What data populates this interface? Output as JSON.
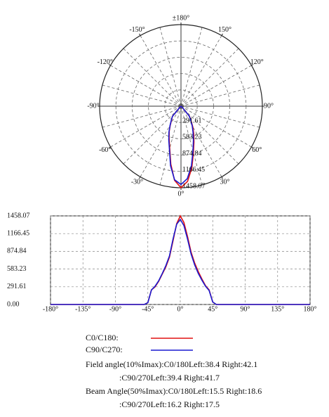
{
  "chart_data": [
    {
      "type": "polar",
      "thetaticks": [
        {
          "value": 180,
          "label": "±180°"
        },
        {
          "value": -150,
          "label": "-150°"
        },
        {
          "value": 150,
          "label": "150°"
        },
        {
          "value": -120,
          "label": "-120°"
        },
        {
          "value": 120,
          "label": "120°"
        },
        {
          "value": -90,
          "label": "-90°"
        },
        {
          "value": 90,
          "label": "90°"
        },
        {
          "value": -60,
          "label": "-60°"
        },
        {
          "value": 60,
          "label": "60°"
        },
        {
          "value": -30,
          "label": "-30°"
        },
        {
          "value": 30,
          "label": "30°"
        },
        {
          "value": 0,
          "label": "0°"
        }
      ],
      "rlim": [
        0,
        1458.07
      ],
      "rticks": [
        291.61,
        583.23,
        874.84,
        1166.45,
        1458.07
      ],
      "theta": [
        -180,
        -90,
        -50,
        -45,
        -40,
        -35,
        -30,
        -25,
        -20,
        -15,
        -10,
        -5,
        0,
        5,
        10,
        15,
        20,
        25,
        30,
        35,
        40,
        45,
        50,
        90,
        180
      ],
      "series": [
        {
          "color": "#e01010",
          "values": [
            0,
            0,
            0,
            30,
            240,
            290,
            380,
            500,
            620,
            780,
            1050,
            1330,
            1458,
            1350,
            1120,
            860,
            680,
            540,
            420,
            310,
            240,
            40,
            0,
            0,
            0
          ]
        },
        {
          "color": "#1a1ad0",
          "values": [
            0,
            0,
            0,
            30,
            240,
            300,
            390,
            510,
            640,
            800,
            1080,
            1320,
            1400,
            1300,
            1080,
            830,
            650,
            510,
            400,
            300,
            230,
            40,
            0,
            0,
            0
          ]
        }
      ]
    },
    {
      "type": "line",
      "x": [
        -180,
        -90,
        -50,
        -45,
        -40,
        -35,
        -30,
        -25,
        -20,
        -15,
        -10,
        -5,
        0,
        5,
        10,
        15,
        20,
        25,
        30,
        35,
        40,
        45,
        50,
        90,
        180
      ],
      "xlim": [
        -180,
        180
      ],
      "xticks": [
        {
          "value": -180,
          "label": "-180°"
        },
        {
          "value": -135,
          "label": "-135°"
        },
        {
          "value": -90,
          "label": "-90°"
        },
        {
          "value": -45,
          "label": "-45°"
        },
        {
          "value": 0,
          "label": "0°"
        },
        {
          "value": 45,
          "label": "45°"
        },
        {
          "value": 90,
          "label": "90°"
        },
        {
          "value": 135,
          "label": "135°"
        },
        {
          "value": 180,
          "label": "180°"
        }
      ],
      "ylim": [
        0,
        1458.07
      ],
      "yticks": [
        {
          "value": 0,
          "label": "0.00"
        },
        291.61,
        583.23,
        874.84,
        1166.45,
        1458.07
      ],
      "grid": true,
      "series": [
        {
          "name": "C0/C180:",
          "color": "#e01010",
          "values": [
            0,
            0,
            0,
            30,
            240,
            290,
            380,
            500,
            620,
            780,
            1050,
            1330,
            1458,
            1350,
            1120,
            860,
            680,
            540,
            420,
            310,
            240,
            40,
            0,
            0,
            0
          ]
        },
        {
          "name": "C90/C270:",
          "color": "#1a1ad0",
          "values": [
            0,
            0,
            0,
            30,
            240,
            300,
            390,
            510,
            640,
            800,
            1080,
            1320,
            1400,
            1300,
            1080,
            830,
            650,
            510,
            400,
            300,
            230,
            40,
            0,
            0,
            0
          ]
        }
      ],
      "annotations": [
        "Field angle(10%Imax):C0/180Left:38.4 Right:42.1",
        ":C90/270Left:39.4 Right:41.7",
        "Beam Angle(50%Imax):C0/180Left:15.5 Right:18.6",
        ":C90/270Left:16.2 Right:17.5"
      ]
    }
  ]
}
